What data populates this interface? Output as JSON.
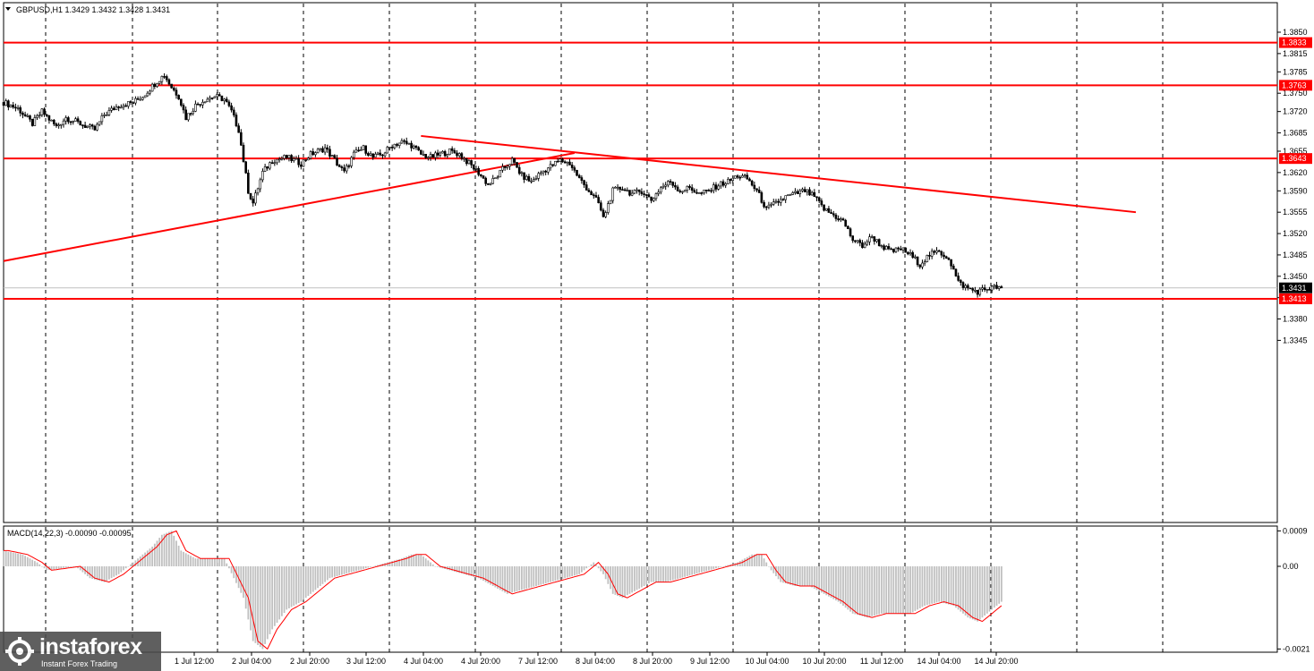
{
  "chart_data": {
    "type": "candlestick",
    "symbol_header": "GBPUSD,H1  1.3429 1.3432 1.3428 1.3431",
    "current_price": 1.3431,
    "current_price_label": "1.3431",
    "price_ticks": [
      "1.3850",
      "1.3815",
      "1.3785",
      "1.3750",
      "1.3720",
      "1.3685",
      "1.3655",
      "1.3620",
      "1.3590",
      "1.3555",
      "1.3520",
      "1.3485",
      "1.3450",
      "1.3415",
      "1.3380",
      "1.3345"
    ],
    "support_resistance": [
      {
        "price": 1.3833,
        "label": "1.3833"
      },
      {
        "price": 1.3763,
        "label": "1.3763"
      },
      {
        "price": 1.3643,
        "label": "1.3643"
      },
      {
        "price": 1.3413,
        "label": "1.3413"
      }
    ],
    "time_ticks": [
      "1 Jul 12:00",
      "2 Jul 04:00",
      "2 Jul 20:00",
      "3 Jul 12:00",
      "4 Jul 04:00",
      "4 Jul 20:00",
      "7 Jul 12:00",
      "8 Jul 04:00",
      "8 Jul 20:00",
      "9 Jul 12:00",
      "10 Jul 04:00",
      "10 Jul 20:00",
      "11 Jul 12:00",
      "14 Jul 04:00",
      "14 Jul 20:00"
    ],
    "close_path": [
      [
        0,
        1.3735
      ],
      [
        6,
        1.3725
      ],
      [
        12,
        1.37
      ],
      [
        16,
        1.372
      ],
      [
        22,
        1.3695
      ],
      [
        26,
        1.371
      ],
      [
        32,
        1.37
      ],
      [
        38,
        1.369
      ],
      [
        42,
        1.3715
      ],
      [
        48,
        1.373
      ],
      [
        54,
        1.3735
      ],
      [
        58,
        1.3745
      ],
      [
        64,
        1.377
      ],
      [
        67,
        1.378
      ],
      [
        70,
        1.376
      ],
      [
        73,
        1.3745
      ],
      [
        76,
        1.371
      ],
      [
        80,
        1.373
      ],
      [
        84,
        1.374
      ],
      [
        88,
        1.3745
      ],
      [
        92,
        1.374
      ],
      [
        95,
        1.372
      ],
      [
        98,
        1.369
      ],
      [
        100,
        1.364
      ],
      [
        102,
        1.359
      ],
      [
        104,
        1.357
      ],
      [
        108,
        1.362
      ],
      [
        112,
        1.364
      ],
      [
        118,
        1.3645
      ],
      [
        124,
        1.3635
      ],
      [
        128,
        1.365
      ],
      [
        134,
        1.366
      ],
      [
        138,
        1.364
      ],
      [
        142,
        1.362
      ],
      [
        146,
        1.365
      ],
      [
        150,
        1.366
      ],
      [
        154,
        1.3645
      ],
      [
        158,
        1.365
      ],
      [
        162,
        1.3665
      ],
      [
        166,
        1.367
      ],
      [
        170,
        1.3665
      ],
      [
        174,
        1.365
      ],
      [
        178,
        1.3645
      ],
      [
        182,
        1.365
      ],
      [
        186,
        1.3655
      ],
      [
        190,
        1.365
      ],
      [
        194,
        1.3635
      ],
      [
        198,
        1.362
      ],
      [
        202,
        1.36
      ],
      [
        205,
        1.361
      ],
      [
        208,
        1.3625
      ],
      [
        212,
        1.364
      ],
      [
        216,
        1.3615
      ],
      [
        220,
        1.3605
      ],
      [
        224,
        1.362
      ],
      [
        228,
        1.363
      ],
      [
        232,
        1.364
      ],
      [
        236,
        1.3635
      ],
      [
        240,
        1.361
      ],
      [
        244,
        1.359
      ],
      [
        248,
        1.357
      ],
      [
        250,
        1.3545
      ],
      [
        254,
        1.359
      ],
      [
        258,
        1.3595
      ],
      [
        262,
        1.3585
      ],
      [
        266,
        1.359
      ],
      [
        270,
        1.3575
      ],
      [
        274,
        1.3595
      ],
      [
        278,
        1.3605
      ],
      [
        282,
        1.359
      ],
      [
        286,
        1.3595
      ],
      [
        290,
        1.3585
      ],
      [
        294,
        1.359
      ],
      [
        298,
        1.36
      ],
      [
        302,
        1.3605
      ],
      [
        306,
        1.3615
      ],
      [
        310,
        1.361
      ],
      [
        314,
        1.359
      ],
      [
        318,
        1.356
      ],
      [
        322,
        1.357
      ],
      [
        326,
        1.358
      ],
      [
        330,
        1.3585
      ],
      [
        334,
        1.359
      ],
      [
        338,
        1.358
      ],
      [
        342,
        1.356
      ],
      [
        346,
        1.355
      ],
      [
        350,
        1.354
      ],
      [
        354,
        1.351
      ],
      [
        358,
        1.35
      ],
      [
        362,
        1.3515
      ],
      [
        366,
        1.35
      ],
      [
        370,
        1.349
      ],
      [
        374,
        1.3495
      ],
      [
        378,
        1.3485
      ],
      [
        382,
        1.347
      ],
      [
        386,
        1.3485
      ],
      [
        390,
        1.349
      ],
      [
        394,
        1.348
      ],
      [
        398,
        1.344
      ],
      [
        402,
        1.343
      ],
      [
        406,
        1.3425
      ],
      [
        410,
        1.343
      ],
      [
        414,
        1.3432
      ],
      [
        416,
        1.3431
      ]
    ],
    "trendlines": [
      {
        "from": [
          0,
          1.3475
        ],
        "to": [
          238,
          1.3652
        ]
      },
      {
        "from": [
          174,
          1.368
        ],
        "to": [
          472,
          1.3555
        ]
      }
    ],
    "macd": {
      "label": "MACD(14,22,3) -0.00090 -0.00095",
      "ticks": [
        "0.0009",
        "0.00",
        "-0.0021"
      ],
      "histogram": [
        [
          0,
          0.0004
        ],
        [
          8,
          0.0003
        ],
        [
          14,
          0.0001
        ],
        [
          18,
          -0.0001
        ],
        [
          24,
          -5e-05
        ],
        [
          30,
          0.0
        ],
        [
          36,
          -0.0003
        ],
        [
          42,
          -0.0004
        ],
        [
          48,
          -0.0002
        ],
        [
          54,
          0.0001
        ],
        [
          58,
          0.0003
        ],
        [
          62,
          0.0005
        ],
        [
          66,
          0.0008
        ],
        [
          70,
          0.0009
        ],
        [
          74,
          0.0004
        ],
        [
          80,
          0.0002
        ],
        [
          86,
          0.0002
        ],
        [
          92,
          0.0002
        ],
        [
          96,
          -0.0003
        ],
        [
          100,
          -0.0008
        ],
        [
          104,
          -0.0019
        ],
        [
          108,
          -0.0021
        ],
        [
          112,
          -0.0016
        ],
        [
          118,
          -0.0011
        ],
        [
          124,
          -0.0009
        ],
        [
          130,
          -0.0006
        ],
        [
          136,
          -0.0003
        ],
        [
          142,
          -0.0002
        ],
        [
          148,
          -0.0001
        ],
        [
          154,
          0.0
        ],
        [
          160,
          0.0001
        ],
        [
          166,
          0.0002
        ],
        [
          170,
          0.0003
        ],
        [
          174,
          0.0003
        ],
        [
          180,
          0.0
        ],
        [
          186,
          -0.0001
        ],
        [
          192,
          -0.0002
        ],
        [
          198,
          -0.0003
        ],
        [
          204,
          -0.0005
        ],
        [
          210,
          -0.0007
        ],
        [
          216,
          -0.0006
        ],
        [
          222,
          -0.0005
        ],
        [
          228,
          -0.0004
        ],
        [
          234,
          -0.0003
        ],
        [
          240,
          -0.0002
        ],
        [
          246,
          0.0001
        ],
        [
          250,
          -0.0002
        ],
        [
          254,
          -0.0007
        ],
        [
          258,
          -0.0008
        ],
        [
          264,
          -0.0006
        ],
        [
          270,
          -0.0004
        ],
        [
          276,
          -0.0004
        ],
        [
          282,
          -0.0003
        ],
        [
          288,
          -0.0002
        ],
        [
          294,
          -0.0001
        ],
        [
          300,
          0.0
        ],
        [
          306,
          0.0001
        ],
        [
          312,
          0.0003
        ],
        [
          316,
          0.0003
        ],
        [
          320,
          -0.0001
        ],
        [
          324,
          -0.0004
        ],
        [
          330,
          -0.0005
        ],
        [
          336,
          -0.0005
        ],
        [
          342,
          -0.0007
        ],
        [
          348,
          -0.0009
        ],
        [
          354,
          -0.0012
        ],
        [
          360,
          -0.0013
        ],
        [
          366,
          -0.0012
        ],
        [
          372,
          -0.0012
        ],
        [
          378,
          -0.0012
        ],
        [
          384,
          -0.001
        ],
        [
          390,
          -0.0009
        ],
        [
          396,
          -0.001
        ],
        [
          402,
          -0.0013
        ],
        [
          406,
          -0.0014
        ],
        [
          410,
          -0.0012
        ],
        [
          416,
          -0.0009
        ]
      ]
    }
  },
  "branding": {
    "name": "instaforex",
    "tagline": "Instant Forex Trading"
  }
}
